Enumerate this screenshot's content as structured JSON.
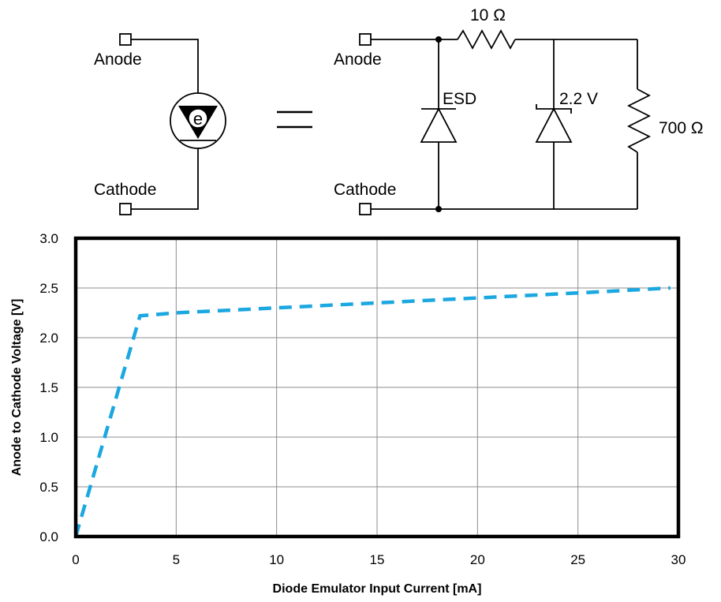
{
  "circuit": {
    "left_anode_label": "Anode",
    "left_cathode_label": "Cathode",
    "emulator_symbol_letter": "e",
    "right_anode_label": "Anode",
    "right_cathode_label": "Cathode",
    "series_resistor_label": "10 Ω",
    "esd_label": "ESD",
    "zener_label": "2.2 V",
    "shunt_resistor_label": "700 Ω"
  },
  "chart_data": {
    "type": "line",
    "title": "",
    "xlabel": "Diode Emulator Input Current [mA]",
    "ylabel": "Anode to Cathode Voltage [V]",
    "xlim": [
      0,
      30
    ],
    "ylim": [
      0,
      3.0
    ],
    "xticks": [
      "0",
      "5",
      "10",
      "15",
      "20",
      "25",
      "30"
    ],
    "yticks": [
      "0.0",
      "0.5",
      "1.0",
      "1.5",
      "2.0",
      "2.5",
      "3.0"
    ],
    "grid": true,
    "legend": "none",
    "series": [
      {
        "color": "#1BA7E0",
        "style": "dashed",
        "x": [
          0,
          3.2,
          5,
          10,
          15,
          20,
          25,
          29.6
        ],
        "y": [
          0,
          2.22,
          2.25,
          2.3,
          2.35,
          2.4,
          2.45,
          2.5
        ]
      }
    ]
  }
}
